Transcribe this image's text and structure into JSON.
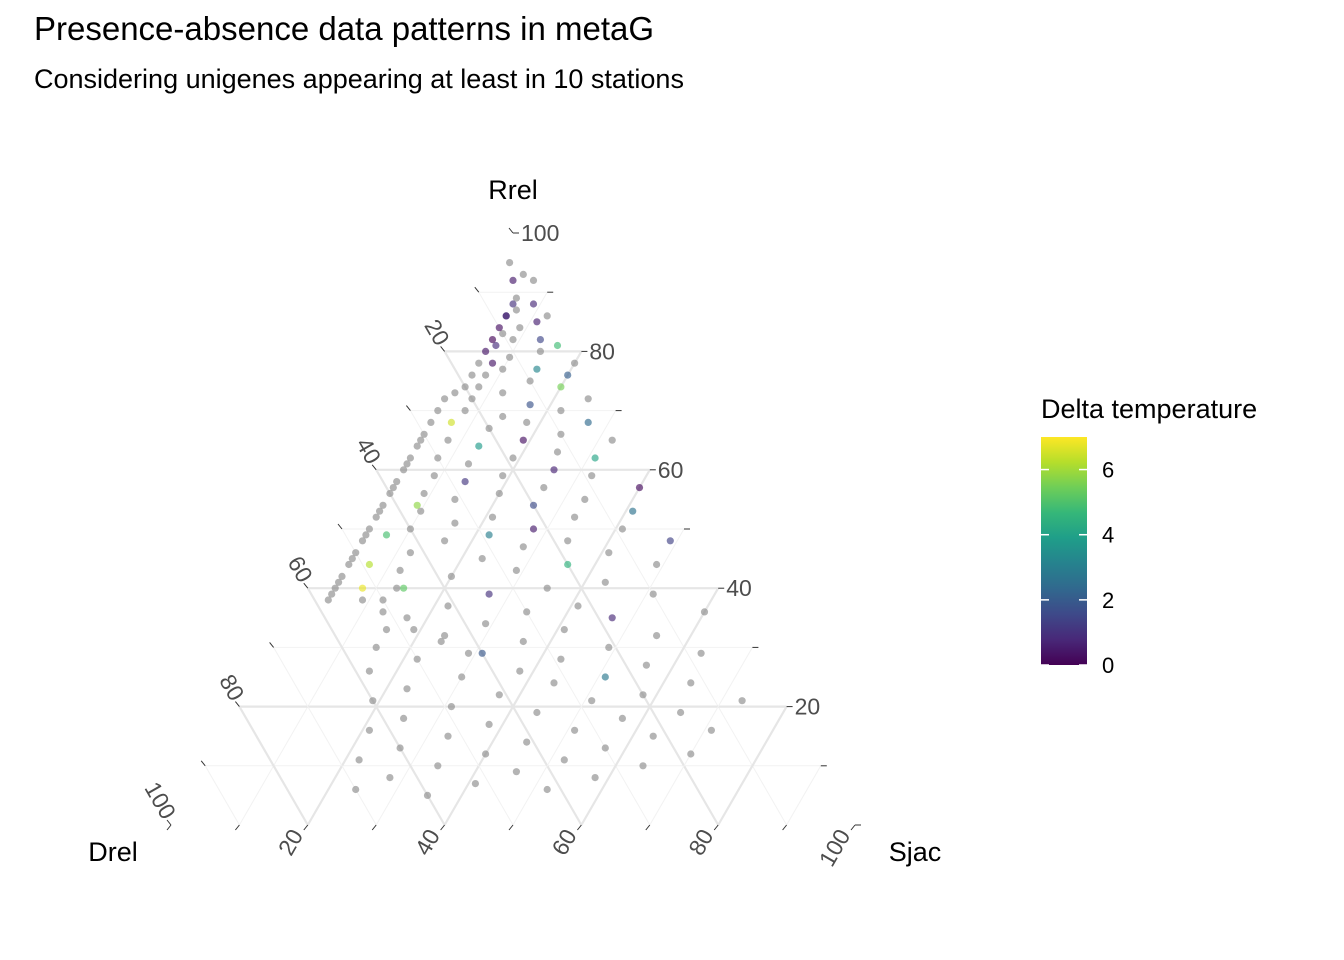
{
  "chart_data": {
    "type": "scatter",
    "subtype": "ternary",
    "title": "Presence-absence data patterns in metaG",
    "subtitle": "Considering unigenes appearing at least in 10 stations",
    "axes": {
      "top": "Rrel",
      "left": "Drel",
      "right": "Sjac"
    },
    "ticks": [
      "20",
      "40",
      "60",
      "80",
      "100"
    ],
    "grid": true,
    "legend": {
      "title": "Delta temperature",
      "position": "right",
      "range": [
        0,
        7
      ],
      "ticks": [
        "0",
        "2",
        "4",
        "6"
      ],
      "colormap": "viridis"
    },
    "na_color": "#8c8c8c",
    "points_note": "points given as [Drel, Rrel, Sjac, delta_temperature]; null = no delta temperature (grey)",
    "points": [
      [
        3,
        95,
        2,
        null
      ],
      [
        2,
        93,
        5,
        null
      ],
      [
        4,
        92,
        4,
        0.5
      ],
      [
        1,
        92,
        7,
        null
      ],
      [
        5,
        89,
        6,
        null
      ],
      [
        3,
        88,
        9,
        0.8
      ],
      [
        6,
        87,
        7,
        null
      ],
      [
        8,
        86,
        6,
        1.2
      ],
      [
        2,
        86,
        12,
        null
      ],
      [
        4,
        85,
        11,
        0.6
      ],
      [
        7,
        84,
        9,
        null
      ],
      [
        10,
        83,
        7,
        null
      ],
      [
        5,
        82,
        13,
        1.5
      ],
      [
        9,
        82,
        9,
        null
      ],
      [
        12,
        81,
        7,
        0.9
      ],
      [
        3,
        81,
        16,
        4.8
      ],
      [
        6,
        80,
        14,
        null
      ],
      [
        11,
        79,
        10,
        null
      ],
      [
        14,
        78,
        8,
        0.4
      ],
      [
        2,
        78,
        20,
        null
      ],
      [
        8,
        77,
        15,
        3.2
      ],
      [
        13,
        77,
        10,
        null
      ],
      [
        16,
        76,
        8,
        null
      ],
      [
        4,
        76,
        20,
        2.1
      ],
      [
        10,
        75,
        15,
        null
      ],
      [
        18,
        74,
        8,
        null
      ],
      [
        6,
        74,
        20,
        5.5
      ],
      [
        15,
        73,
        12,
        null
      ],
      [
        20,
        72,
        8,
        null
      ],
      [
        3,
        72,
        25,
        null
      ],
      [
        12,
        71,
        17,
        1.8
      ],
      [
        22,
        70,
        8,
        null
      ],
      [
        8,
        70,
        22,
        null
      ],
      [
        17,
        69,
        14,
        null
      ],
      [
        25,
        68,
        7,
        6.5
      ],
      [
        14,
        68,
        18,
        null
      ],
      [
        5,
        68,
        27,
        2.4
      ],
      [
        20,
        67,
        13,
        null
      ],
      [
        10,
        66,
        24,
        null
      ],
      [
        27,
        65,
        8,
        null
      ],
      [
        16,
        65,
        19,
        0.3
      ],
      [
        3,
        65,
        32,
        null
      ],
      [
        23,
        64,
        13,
        3.8
      ],
      [
        12,
        63,
        25,
        null
      ],
      [
        30,
        62,
        8,
        null
      ],
      [
        19,
        62,
        19,
        null
      ],
      [
        7,
        62,
        31,
        4.1
      ],
      [
        26,
        61,
        13,
        null
      ],
      [
        14,
        60,
        26,
        0.7
      ],
      [
        32,
        59,
        9,
        null
      ],
      [
        22,
        59,
        19,
        null
      ],
      [
        9,
        59,
        32,
        null
      ],
      [
        28,
        58,
        14,
        1.1
      ],
      [
        17,
        57,
        26,
        null
      ],
      [
        35,
        56,
        9,
        null
      ],
      [
        3,
        57,
        40,
        0.2
      ],
      [
        24,
        56,
        20,
        null
      ],
      [
        12,
        55,
        33,
        null
      ],
      [
        31,
        55,
        14,
        null
      ],
      [
        20,
        54,
        26,
        1.6
      ],
      [
        37,
        53,
        10,
        null
      ],
      [
        6,
        53,
        41,
        2.6
      ],
      [
        27,
        52,
        21,
        null
      ],
      [
        15,
        52,
        33,
        null
      ],
      [
        33,
        51,
        16,
        null
      ],
      [
        22,
        50,
        28,
        0.5
      ],
      [
        40,
        50,
        10,
        null
      ],
      [
        9,
        50,
        41,
        null
      ],
      [
        29,
        49,
        22,
        3.0
      ],
      [
        18,
        48,
        34,
        null
      ],
      [
        36,
        48,
        16,
        null
      ],
      [
        3,
        48,
        49,
        1.4
      ],
      [
        25,
        47,
        28,
        null
      ],
      [
        42,
        46,
        12,
        null
      ],
      [
        13,
        46,
        41,
        null
      ],
      [
        32,
        45,
        23,
        null
      ],
      [
        20,
        44,
        36,
        4.5
      ],
      [
        45,
        43,
        12,
        null
      ],
      [
        7,
        44,
        49,
        null
      ],
      [
        28,
        43,
        29,
        null
      ],
      [
        38,
        42,
        20,
        null
      ],
      [
        16,
        41,
        43,
        null
      ],
      [
        47,
        40,
        13,
        null
      ],
      [
        25,
        40,
        35,
        null
      ],
      [
        34,
        39,
        27,
        1.0
      ],
      [
        10,
        39,
        51,
        null
      ],
      [
        50,
        38,
        12,
        null
      ],
      [
        22,
        37,
        41,
        null
      ],
      [
        41,
        37,
        22,
        null
      ],
      [
        30,
        36,
        34,
        null
      ],
      [
        4,
        36,
        60,
        null
      ],
      [
        48,
        35,
        17,
        null
      ],
      [
        18,
        35,
        47,
        0.8
      ],
      [
        37,
        34,
        29,
        null
      ],
      [
        26,
        33,
        41,
        null
      ],
      [
        52,
        33,
        15,
        null
      ],
      [
        13,
        32,
        55,
        null
      ],
      [
        44,
        32,
        24,
        null
      ],
      [
        33,
        31,
        36,
        null
      ],
      [
        55,
        30,
        15,
        null
      ],
      [
        21,
        30,
        49,
        null
      ],
      [
        40,
        29,
        31,
        1.9
      ],
      [
        8,
        29,
        63,
        null
      ],
      [
        29,
        28,
        43,
        null
      ],
      [
        50,
        28,
        22,
        null
      ],
      [
        17,
        27,
        56,
        null
      ],
      [
        36,
        26,
        38,
        null
      ],
      [
        58,
        26,
        16,
        null
      ],
      [
        24,
        25,
        51,
        2.8
      ],
      [
        45,
        25,
        30,
        null
      ],
      [
        12,
        24,
        64,
        null
      ],
      [
        32,
        24,
        44,
        null
      ],
      [
        54,
        23,
        23,
        null
      ],
      [
        20,
        22,
        58,
        null
      ],
      [
        41,
        22,
        37,
        null
      ],
      [
        60,
        21,
        19,
        null
      ],
      [
        28,
        21,
        51,
        null
      ],
      [
        6,
        21,
        73,
        null
      ],
      [
        49,
        20,
        31,
        null
      ],
      [
        37,
        19,
        44,
        null
      ],
      [
        16,
        19,
        65,
        null
      ],
      [
        57,
        18,
        25,
        null
      ],
      [
        25,
        18,
        57,
        null
      ],
      [
        45,
        17,
        38,
        null
      ],
      [
        63,
        16,
        21,
        null
      ],
      [
        33,
        16,
        51,
        null
      ],
      [
        13,
        16,
        71,
        null
      ],
      [
        52,
        15,
        33,
        null
      ],
      [
        22,
        15,
        63,
        null
      ],
      [
        41,
        14,
        45,
        null
      ],
      [
        60,
        13,
        27,
        null
      ],
      [
        30,
        13,
        57,
        null
      ],
      [
        48,
        12,
        40,
        null
      ],
      [
        67,
        11,
        22,
        null
      ],
      [
        18,
        12,
        70,
        null
      ],
      [
        37,
        11,
        52,
        null
      ],
      [
        56,
        10,
        34,
        null
      ],
      [
        26,
        10,
        64,
        null
      ],
      [
        45,
        9,
        46,
        null
      ],
      [
        64,
        8,
        28,
        null
      ],
      [
        34,
        8,
        58,
        null
      ],
      [
        52,
        7,
        41,
        null
      ],
      [
        70,
        6,
        24,
        null
      ],
      [
        42,
        6,
        52,
        null
      ],
      [
        60,
        5,
        35,
        null
      ],
      [
        8,
        86,
        6,
        0.6
      ],
      [
        10,
        84,
        6,
        0.3
      ],
      [
        12,
        82,
        6,
        0.1
      ],
      [
        14,
        80,
        6,
        0.4
      ],
      [
        6,
        88,
        6,
        1.0
      ],
      [
        16,
        78,
        6,
        null
      ],
      [
        18,
        76,
        6,
        null
      ],
      [
        20,
        74,
        6,
        null
      ],
      [
        24,
        72,
        4,
        null
      ],
      [
        28,
        68,
        4,
        null
      ],
      [
        30,
        66,
        4,
        null
      ],
      [
        32,
        64,
        4,
        null
      ],
      [
        34,
        62,
        4,
        null
      ],
      [
        36,
        60,
        4,
        null
      ],
      [
        38,
        58,
        4,
        null
      ],
      [
        40,
        56,
        4,
        null
      ],
      [
        42,
        54,
        4,
        null
      ],
      [
        44,
        52,
        4,
        null
      ],
      [
        46,
        50,
        4,
        null
      ],
      [
        48,
        48,
        4,
        null
      ],
      [
        50,
        46,
        4,
        null
      ],
      [
        52,
        44,
        4,
        null
      ],
      [
        54,
        42,
        4,
        null
      ],
      [
        56,
        40,
        4,
        null
      ],
      [
        58,
        38,
        4,
        null
      ],
      [
        26,
        70,
        4,
        null
      ],
      [
        22,
        73,
        5,
        null
      ],
      [
        31,
        65,
        4,
        null
      ],
      [
        35,
        61,
        4,
        null
      ],
      [
        39,
        57,
        4,
        null
      ],
      [
        43,
        53,
        4,
        null
      ],
      [
        47,
        49,
        4,
        null
      ],
      [
        51,
        45,
        4,
        null
      ],
      [
        55,
        41,
        4,
        null
      ],
      [
        57,
        39,
        4,
        null
      ],
      [
        46,
        40,
        14,
        5.2
      ],
      [
        52,
        40,
        8,
        6.8
      ],
      [
        49,
        44,
        7,
        6.2
      ],
      [
        37,
        54,
        9,
        5.8
      ],
      [
        44,
        49,
        7,
        4.9
      ],
      [
        53,
        38,
        9,
        null
      ],
      [
        51,
        36,
        13,
        null
      ],
      [
        48,
        33,
        19,
        null
      ],
      [
        45,
        31,
        24,
        null
      ],
      [
        42,
        29,
        29,
        null
      ]
    ]
  }
}
